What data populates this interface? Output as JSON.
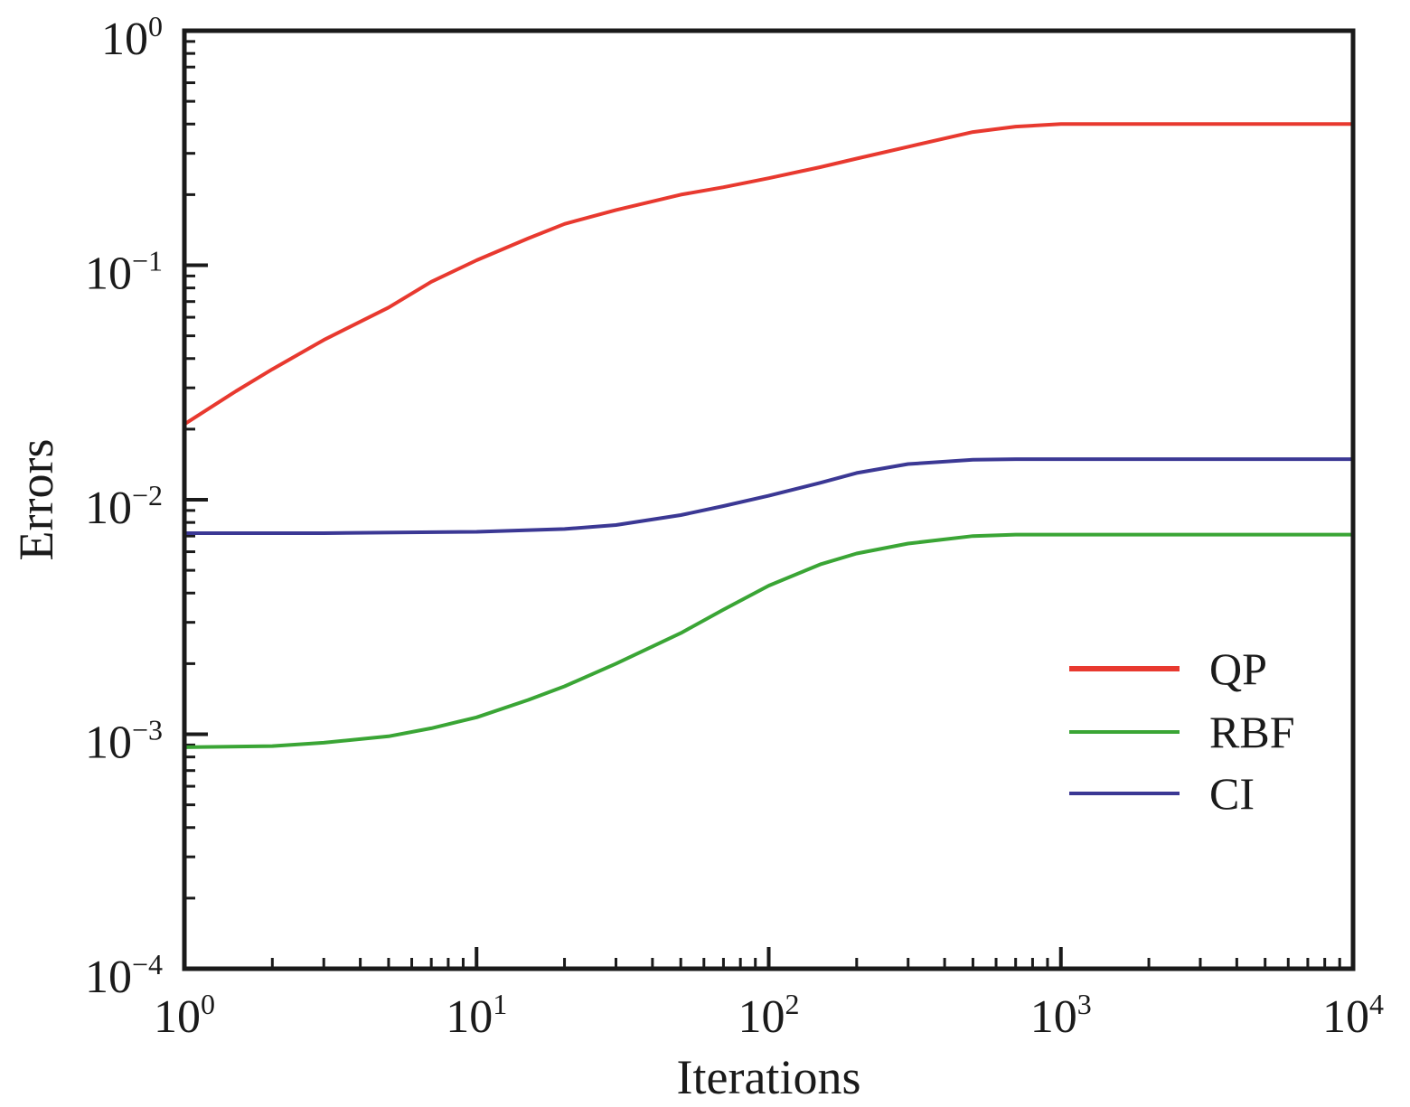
{
  "chart_data": {
    "type": "line",
    "xlabel": "Iterations",
    "ylabel": "Errors",
    "xscale": "log",
    "yscale": "log",
    "xlim": [
      1,
      10000
    ],
    "ylim": [
      0.0001,
      1
    ],
    "x_ticks": [
      {
        "value": 1,
        "base": "10",
        "exp": "0"
      },
      {
        "value": 10,
        "base": "10",
        "exp": "1"
      },
      {
        "value": 100,
        "base": "10",
        "exp": "2"
      },
      {
        "value": 1000,
        "base": "10",
        "exp": "3"
      },
      {
        "value": 10000,
        "base": "10",
        "exp": "4"
      }
    ],
    "y_ticks": [
      {
        "value": 1,
        "base": "10",
        "exp": "0"
      },
      {
        "value": 0.1,
        "base": "10",
        "exp": "−1"
      },
      {
        "value": 0.01,
        "base": "10",
        "exp": "−2"
      },
      {
        "value": 0.001,
        "base": "10",
        "exp": "−3"
      },
      {
        "value": 0.0001,
        "base": "10",
        "exp": "−4"
      }
    ],
    "legend_position": "lower-right",
    "series": [
      {
        "name": "QP",
        "color": "#e8392f",
        "x": [
          1,
          1.5,
          2,
          3,
          5,
          7,
          10,
          15,
          20,
          30,
          50,
          70,
          100,
          150,
          200,
          300,
          500,
          700,
          1000,
          2000,
          5000,
          10000
        ],
        "y": [
          0.021,
          0.029,
          0.036,
          0.048,
          0.066,
          0.085,
          0.105,
          0.13,
          0.15,
          0.172,
          0.2,
          0.215,
          0.235,
          0.262,
          0.285,
          0.32,
          0.37,
          0.39,
          0.4,
          0.4,
          0.4,
          0.4
        ]
      },
      {
        "name": "RBF",
        "color": "#3aa535",
        "x": [
          1,
          2,
          3,
          5,
          7,
          10,
          15,
          20,
          30,
          50,
          70,
          100,
          150,
          200,
          300,
          500,
          700,
          1000,
          2000,
          5000,
          10000
        ],
        "y": [
          0.00088,
          0.00089,
          0.00092,
          0.00098,
          0.00106,
          0.00118,
          0.0014,
          0.0016,
          0.002,
          0.0027,
          0.0034,
          0.0043,
          0.0053,
          0.0059,
          0.0065,
          0.007,
          0.0071,
          0.0071,
          0.0071,
          0.0071,
          0.0071
        ]
      },
      {
        "name": "CI",
        "color": "#3b3894",
        "x": [
          1,
          3,
          10,
          20,
          30,
          50,
          70,
          100,
          150,
          200,
          300,
          500,
          700,
          1000,
          2000,
          5000,
          10000
        ],
        "y": [
          0.0072,
          0.0072,
          0.0073,
          0.0075,
          0.0078,
          0.0086,
          0.0094,
          0.0104,
          0.0118,
          0.013,
          0.0142,
          0.0148,
          0.0149,
          0.0149,
          0.0149,
          0.0149,
          0.0149
        ]
      }
    ]
  }
}
